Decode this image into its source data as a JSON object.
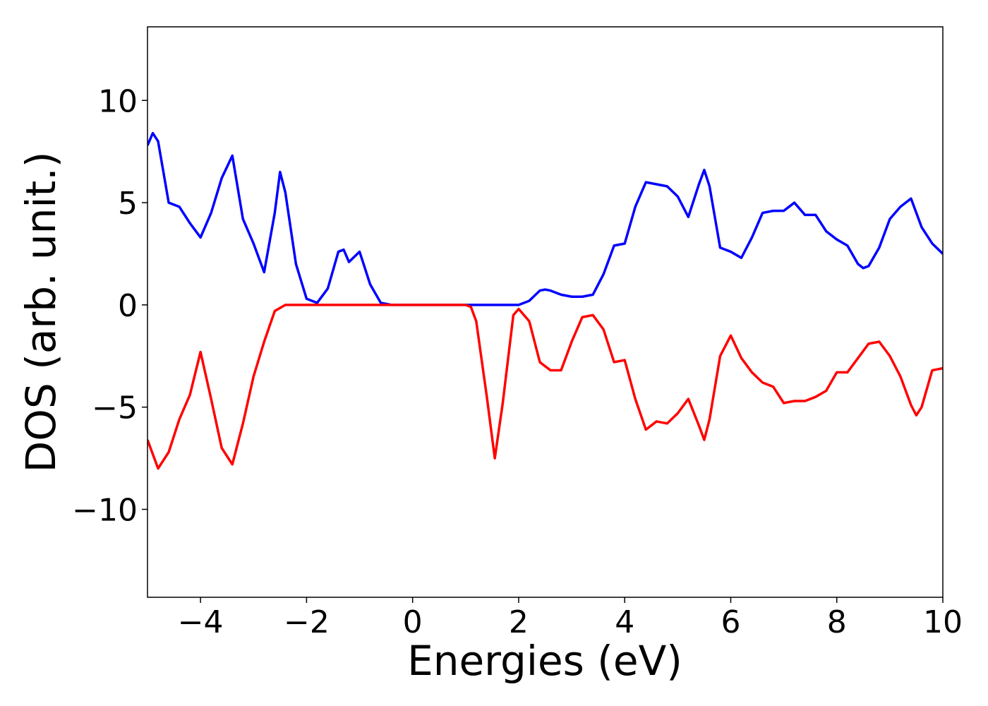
{
  "chart_data": {
    "type": "line",
    "xlabel": "Energies (eV)",
    "ylabel": "DOS (arb. unit.)",
    "xlim": [
      -5,
      10
    ],
    "ylim": [
      -14.3,
      13.6
    ],
    "xticks": [
      {
        "value": -4,
        "label": "−4"
      },
      {
        "value": -2,
        "label": "−2"
      },
      0,
      2,
      4,
      6,
      8,
      10
    ],
    "yticks": [
      {
        "value": -10,
        "label": "−10"
      },
      {
        "value": -5,
        "label": "−5"
      },
      0,
      5,
      10
    ],
    "grid": false,
    "series": [
      {
        "color": "#0000ff",
        "x": [
          -5,
          -4.9,
          -4.8,
          -4.6,
          -4.4,
          -4.2,
          -4.0,
          -3.8,
          -3.6,
          -3.4,
          -3.2,
          -3.0,
          -2.8,
          -2.6,
          -2.5,
          -2.4,
          -2.2,
          -2.0,
          -1.8,
          -1.6,
          -1.4,
          -1.3,
          -1.2,
          -1.0,
          -0.8,
          -0.6,
          -0.4,
          0,
          1,
          2.0,
          2.2,
          2.4,
          2.5,
          2.6,
          2.8,
          3.0,
          3.2,
          3.4,
          3.6,
          3.8,
          4.0,
          4.2,
          4.4,
          4.6,
          4.8,
          5.0,
          5.2,
          5.4,
          5.5,
          5.6,
          5.8,
          6.0,
          6.2,
          6.4,
          6.6,
          6.8,
          7.0,
          7.2,
          7.4,
          7.6,
          7.8,
          8.0,
          8.2,
          8.4,
          8.5,
          8.6,
          8.8,
          9.0,
          9.2,
          9.4,
          9.6,
          9.8,
          10
        ],
        "values": [
          7.8,
          8.4,
          8.0,
          5.0,
          4.8,
          4.0,
          3.3,
          4.5,
          6.2,
          7.3,
          4.2,
          3.0,
          1.6,
          4.5,
          6.5,
          5.5,
          2.0,
          0.3,
          0.1,
          0.8,
          2.6,
          2.7,
          2.1,
          2.6,
          1.0,
          0.1,
          0,
          0,
          0,
          0,
          0.2,
          0.7,
          0.75,
          0.7,
          0.5,
          0.4,
          0.4,
          0.5,
          1.5,
          2.9,
          3.0,
          4.8,
          6.0,
          5.9,
          5.8,
          5.3,
          4.3,
          5.9,
          6.6,
          5.8,
          2.8,
          2.6,
          2.3,
          3.3,
          4.5,
          4.6,
          4.6,
          5.0,
          4.4,
          4.4,
          3.6,
          3.2,
          2.9,
          2.0,
          1.8,
          1.9,
          2.8,
          4.2,
          4.8,
          5.2,
          3.8,
          3.0,
          2.5
        ]
      },
      {
        "color": "#ff0000",
        "x": [
          -5,
          -4.8,
          -4.6,
          -4.4,
          -4.2,
          -4.0,
          -3.8,
          -3.6,
          -3.4,
          -3.2,
          -3.0,
          -2.8,
          -2.6,
          -2.4,
          0,
          1.0,
          1.1,
          1.2,
          1.4,
          1.55,
          1.7,
          1.9,
          2.0,
          2.2,
          2.4,
          2.6,
          2.8,
          3.0,
          3.2,
          3.4,
          3.6,
          3.8,
          4.0,
          4.2,
          4.4,
          4.6,
          4.8,
          5.0,
          5.2,
          5.4,
          5.5,
          5.6,
          5.8,
          6.0,
          6.2,
          6.4,
          6.6,
          6.8,
          7.0,
          7.2,
          7.4,
          7.6,
          7.8,
          8.0,
          8.2,
          8.4,
          8.6,
          8.8,
          9.0,
          9.2,
          9.4,
          9.5,
          9.6,
          9.8,
          10
        ],
        "values": [
          -6.6,
          -8.0,
          -7.2,
          -5.6,
          -4.4,
          -2.3,
          -4.6,
          -7.0,
          -7.8,
          -5.8,
          -3.5,
          -1.8,
          -0.3,
          0,
          0,
          0,
          -0.1,
          -0.8,
          -4.5,
          -7.5,
          -4.8,
          -0.5,
          -0.2,
          -0.8,
          -2.8,
          -3.2,
          -3.2,
          -1.8,
          -0.6,
          -0.5,
          -1.2,
          -2.8,
          -2.7,
          -4.6,
          -6.1,
          -5.7,
          -5.8,
          -5.3,
          -4.6,
          -5.9,
          -6.6,
          -5.6,
          -2.5,
          -1.5,
          -2.6,
          -3.3,
          -3.8,
          -4.0,
          -4.8,
          -4.7,
          -4.7,
          -4.5,
          -4.2,
          -3.3,
          -3.3,
          -2.6,
          -1.9,
          -1.8,
          -2.5,
          -3.5,
          -4.9,
          -5.4,
          -5.0,
          -3.2,
          -3.1
        ]
      }
    ]
  }
}
